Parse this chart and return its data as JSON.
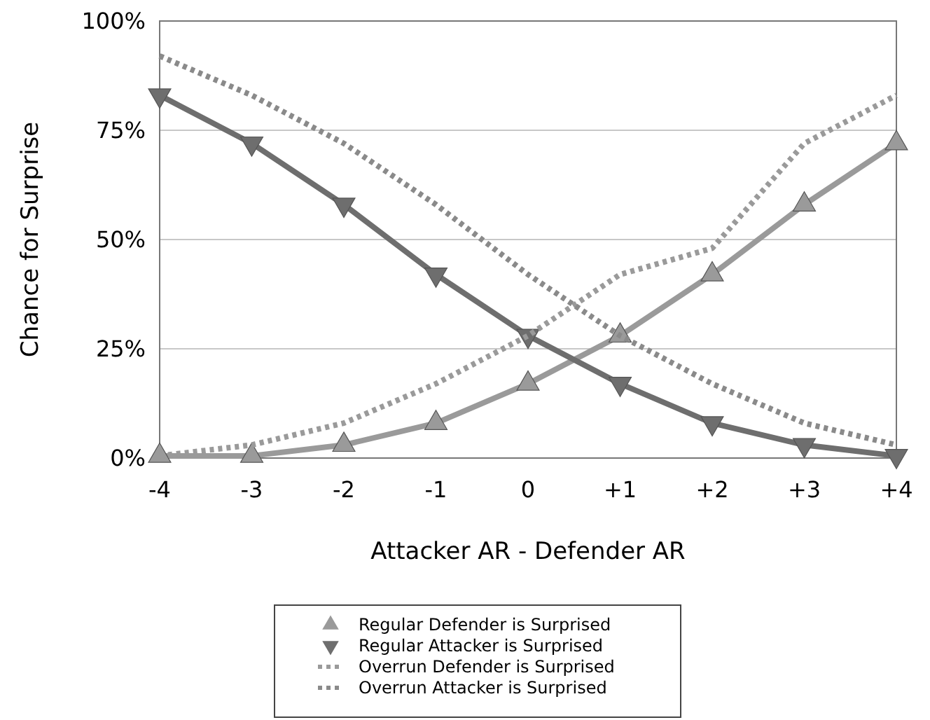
{
  "chart_data": {
    "type": "line",
    "xlabel": "Attacker AR - Defender AR",
    "ylabel": "Chance for Surprise",
    "x": [
      -4,
      -3,
      -2,
      -1,
      0,
      1,
      2,
      3,
      4
    ],
    "xlim": [
      -4,
      4
    ],
    "xticks": [
      {
        "value": -4,
        "label": "-4"
      },
      {
        "value": -3,
        "label": "-3"
      },
      {
        "value": -2,
        "label": "-2"
      },
      {
        "value": -1,
        "label": "-1"
      },
      {
        "value": 0,
        "label": "0"
      },
      {
        "value": 1,
        "label": "+1"
      },
      {
        "value": 2,
        "label": "+2"
      },
      {
        "value": 3,
        "label": "+3"
      },
      {
        "value": 4,
        "label": "+4"
      }
    ],
    "ylim": [
      0,
      100
    ],
    "yticks": [
      {
        "value": 0,
        "label": "0%"
      },
      {
        "value": 25,
        "label": "25%"
      },
      {
        "value": 50,
        "label": "50%"
      },
      {
        "value": 75,
        "label": "75%"
      },
      {
        "value": 100,
        "label": "100%"
      }
    ],
    "grid": "y",
    "legend": "bottom",
    "series": [
      {
        "name": "Regular Defender is Surprised",
        "color": "#9a9a9a",
        "marker": "triangle",
        "line_style": "solid",
        "values": [
          0.5,
          0.5,
          3,
          8,
          17,
          28,
          42,
          58,
          72
        ]
      },
      {
        "name": "Regular Attacker is Surprised",
        "color": "#6e6e6e",
        "marker": "triangle-down",
        "line_style": "solid",
        "values": [
          83,
          72,
          58,
          42,
          28,
          17,
          8,
          3,
          0.5
        ]
      },
      {
        "name": "Overrun Defender is Surprised",
        "color": "#9a9a9a",
        "marker": "none",
        "line_style": "dotted",
        "values": [
          0.5,
          3,
          8,
          17,
          28,
          42,
          48,
          72,
          83
        ]
      },
      {
        "name": "Overrun Attacker is Surprised",
        "color": "#8a8a8a",
        "marker": "none",
        "line_style": "dotted",
        "values": [
          92,
          83,
          72,
          58,
          42,
          28,
          17,
          8,
          3
        ]
      }
    ]
  }
}
